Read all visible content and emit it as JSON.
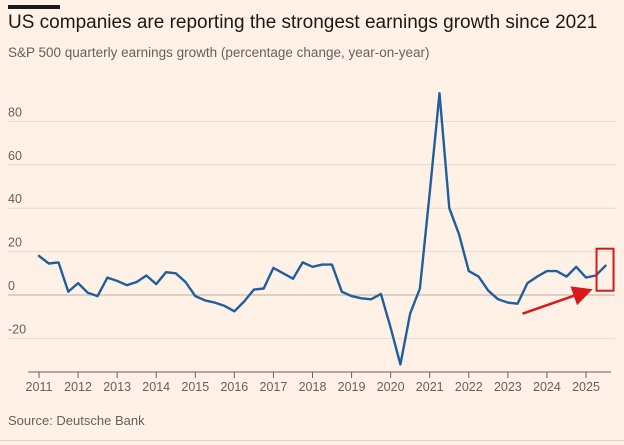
{
  "header": {
    "title": "US companies are reporting the strongest earnings growth since 2021",
    "subtitle": "S&P 500 quarterly earnings growth (percentage change, year-on-year)"
  },
  "footer": {
    "source": "Source: Deutsche Bank"
  },
  "chart_data": {
    "type": "line",
    "title": "US companies are reporting the strongest earnings growth since 2021",
    "subtitle": "S&P 500 quarterly earnings growth (percentage change, year-on-year)",
    "xlabel": "",
    "ylabel": "",
    "ylim": [
      -35,
      95
    ],
    "xlim": [
      2011,
      2025.6
    ],
    "yticks": [
      80,
      60,
      40,
      20,
      0,
      -20
    ],
    "yticklabels": [
      "80",
      "60",
      "40",
      "20",
      "0",
      "-20"
    ],
    "xticks": [
      2011,
      2012,
      2013,
      2014,
      2015,
      2016,
      2017,
      2018,
      2019,
      2020,
      2021,
      2022,
      2023,
      2024,
      2025
    ],
    "xticklabels": [
      "2011",
      "2012",
      "2013",
      "2014",
      "2015",
      "2016",
      "2017",
      "2018",
      "2019",
      "2020",
      "2021",
      "2022",
      "2023",
      "2024",
      "2025"
    ],
    "grid": "horizontal",
    "series": [
      {
        "name": "S&P 500 quarterly earnings growth",
        "color": "#1f5f9e",
        "x": [
          2011.0,
          2011.25,
          2011.5,
          2011.75,
          2012.0,
          2012.25,
          2012.5,
          2012.75,
          2013.0,
          2013.25,
          2013.5,
          2013.75,
          2014.0,
          2014.25,
          2014.5,
          2014.75,
          2015.0,
          2015.25,
          2015.5,
          2015.75,
          2016.0,
          2016.25,
          2016.5,
          2016.75,
          2017.0,
          2017.25,
          2017.5,
          2017.75,
          2018.0,
          2018.25,
          2018.5,
          2018.75,
          2019.0,
          2019.25,
          2019.5,
          2019.75,
          2020.0,
          2020.25,
          2020.5,
          2020.75,
          2021.0,
          2021.25,
          2021.5,
          2021.75,
          2022.0,
          2022.25,
          2022.5,
          2022.75,
          2023.0,
          2023.25,
          2023.5,
          2023.75,
          2024.0,
          2024.25,
          2024.5,
          2024.75,
          2025.0,
          2025.25,
          2025.5
        ],
        "values": [
          18,
          14.5,
          15,
          1.5,
          5.5,
          1,
          -0.5,
          8,
          6.5,
          4.5,
          6,
          9,
          5,
          10.5,
          10,
          6,
          -0.5,
          -2.5,
          -3.5,
          -5,
          -7.5,
          -3,
          2.5,
          3,
          12.5,
          10,
          7.5,
          15,
          13,
          14,
          14,
          1.5,
          -0.5,
          -1.5,
          -2,
          0.5,
          -15,
          -32,
          -8.5,
          3,
          47,
          93,
          40,
          28,
          11,
          8.5,
          2,
          -2,
          -3.5,
          -4,
          5.5,
          8.5,
          11,
          11,
          8.5,
          13,
          8,
          9,
          13.5
        ]
      }
    ],
    "annotations": [
      {
        "type": "arrow",
        "color": "#d7191c",
        "points_to": "latest quarter",
        "from": "bottom-left"
      },
      {
        "type": "highlight-box",
        "color": "#d7191c",
        "target": "latest quarter"
      }
    ]
  }
}
